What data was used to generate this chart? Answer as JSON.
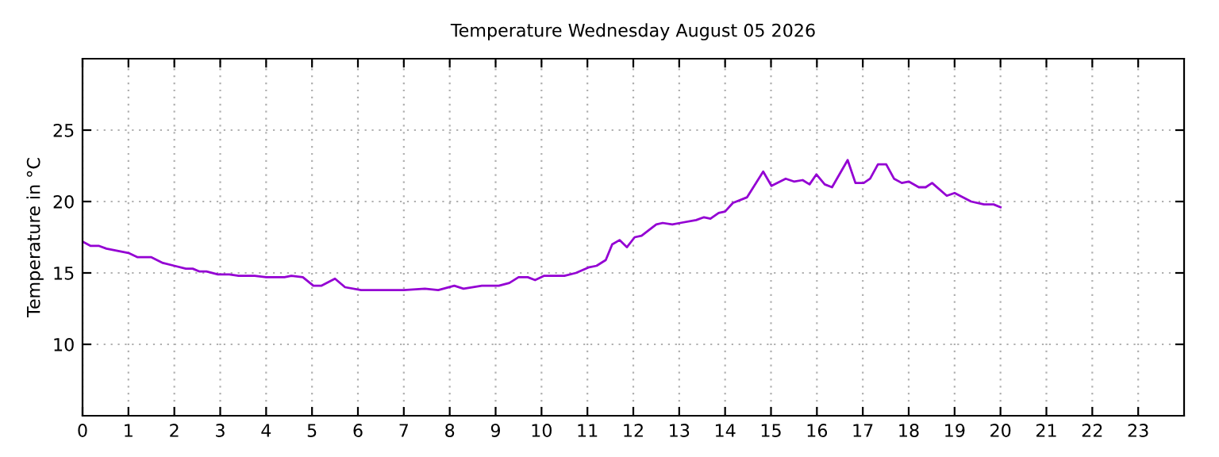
{
  "chart_data": {
    "type": "line",
    "title": "Temperature Wednesday August 05 2026",
    "ylabel": "Temperature in °C",
    "x": [
      0,
      0.17,
      0.35,
      0.52,
      1.0,
      1.2,
      1.5,
      1.75,
      2.0,
      2.25,
      2.4,
      2.55,
      2.7,
      2.95,
      3.2,
      3.4,
      3.75,
      4.0,
      4.2,
      4.4,
      4.55,
      4.8,
      5.03,
      5.2,
      5.5,
      5.72,
      6.07,
      6.5,
      7.0,
      7.46,
      7.75,
      8.1,
      8.3,
      8.7,
      9.07,
      9.3,
      9.5,
      9.7,
      9.86,
      10.06,
      10.5,
      10.75,
      11.04,
      11.2,
      11.4,
      11.54,
      11.7,
      11.86,
      12.03,
      12.18,
      12.5,
      12.64,
      12.85,
      13.02,
      13.37,
      13.54,
      13.68,
      13.86,
      14.0,
      14.17,
      14.48,
      14.83,
      15.01,
      15.32,
      15.5,
      15.69,
      15.84,
      15.99,
      16.17,
      16.33,
      16.67,
      16.84,
      17.02,
      17.16,
      17.33,
      17.51,
      17.68,
      17.85,
      18.0,
      18.22,
      18.37,
      18.51,
      18.83,
      19.0,
      19.36,
      19.64,
      19.85,
      20.0
    ],
    "series": [
      {
        "color": "#9400d3",
        "values": [
          17.2,
          16.9,
          16.9,
          16.7,
          16.4,
          16.1,
          16.1,
          15.7,
          15.5,
          15.3,
          15.3,
          15.1,
          15.1,
          14.9,
          14.9,
          14.8,
          14.8,
          14.7,
          14.7,
          14.7,
          14.8,
          14.7,
          14.1,
          14.1,
          14.6,
          14.0,
          13.8,
          13.8,
          13.8,
          13.9,
          13.8,
          14.1,
          13.9,
          14.1,
          14.1,
          14.3,
          14.7,
          14.7,
          14.5,
          14.8,
          14.8,
          15.0,
          15.4,
          15.5,
          15.9,
          17.0,
          17.3,
          16.8,
          17.5,
          17.6,
          18.4,
          18.5,
          18.4,
          18.5,
          18.7,
          18.9,
          18.8,
          19.2,
          19.3,
          19.9,
          20.3,
          22.1,
          21.1,
          21.6,
          21.4,
          21.5,
          21.2,
          21.9,
          21.2,
          21.0,
          22.9,
          21.3,
          21.3,
          21.6,
          22.6,
          22.6,
          21.6,
          21.3,
          21.4,
          21.0,
          21.0,
          21.3,
          20.4,
          20.6,
          20.0,
          19.8,
          19.8,
          19.6
        ]
      }
    ],
    "xlim": [
      0,
      24
    ],
    "xticks": [
      0,
      1,
      2,
      3,
      4,
      5,
      6,
      7,
      8,
      9,
      10,
      11,
      12,
      13,
      14,
      15,
      16,
      17,
      18,
      19,
      20,
      21,
      22,
      23
    ],
    "ylim": [
      5,
      30
    ],
    "yticks": [
      10,
      15,
      20,
      25
    ],
    "grid": true,
    "marker": "none",
    "line_style": "solid",
    "legend": false
  }
}
